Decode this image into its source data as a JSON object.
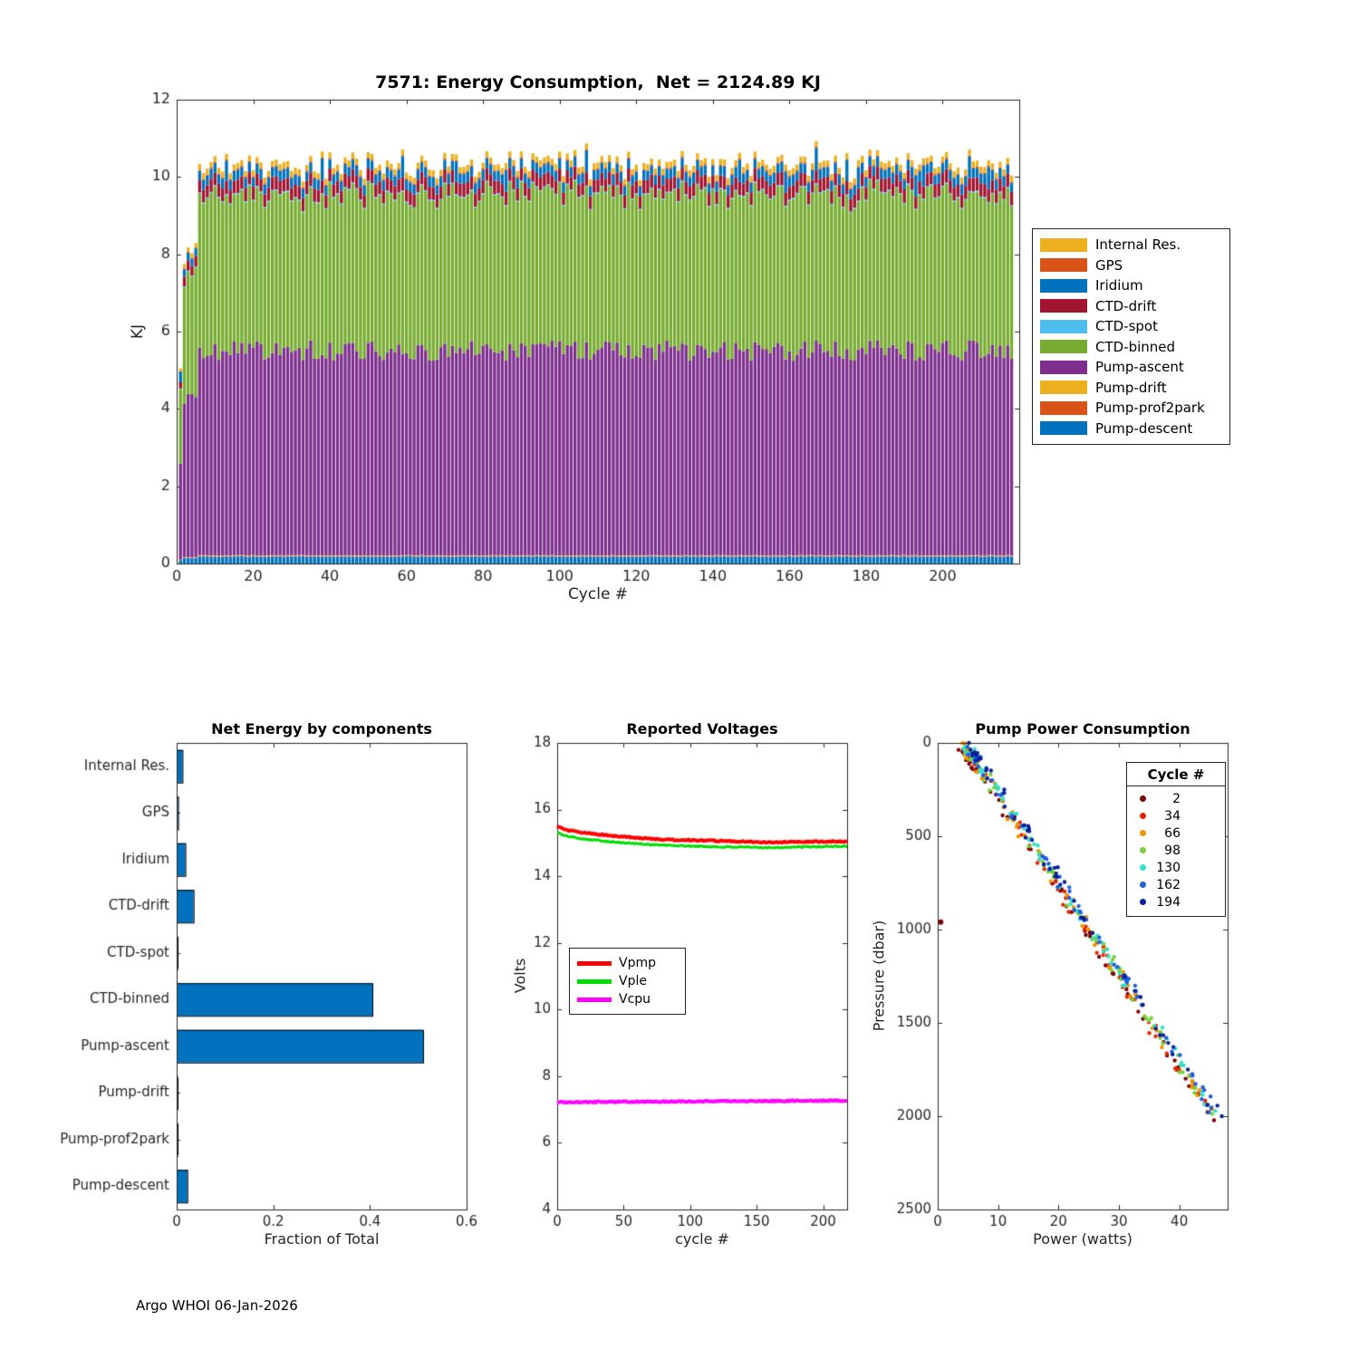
{
  "figure": {
    "footer": "Argo WHOI 06-Jan-2026"
  },
  "chart_data": [
    {
      "id": "energy-consumption",
      "type": "bar",
      "stacked": true,
      "title": "7571: Energy Consumption,  Net = 2124.89 KJ",
      "xlabel": "Cycle #",
      "ylabel": "KJ",
      "xlim": [
        0,
        220
      ],
      "ylim": [
        0,
        12
      ],
      "xticks": [
        0,
        20,
        40,
        60,
        80,
        100,
        120,
        140,
        160,
        180,
        200
      ],
      "yticks": [
        0,
        2,
        4,
        6,
        8,
        10,
        12
      ],
      "n_cycles": 218,
      "net_total_kj": 2124.89,
      "typical_cycle_total_kj": 10.3,
      "components_bottom_to_top": [
        {
          "name": "Pump-descent",
          "color": "#0072BD",
          "typical_kj": 0.18
        },
        {
          "name": "Pump-prof2park",
          "color": "#D95319",
          "typical_kj": 0.015
        },
        {
          "name": "Pump-drift",
          "color": "#EDB120",
          "typical_kj": 0.015
        },
        {
          "name": "Pump-ascent",
          "color": "#7E2F8E",
          "typical_kj": 5.3
        },
        {
          "name": "CTD-binned",
          "color": "#77AC30",
          "typical_kj": 4.0
        },
        {
          "name": "CTD-spot",
          "color": "#4DBEEE",
          "typical_kj": 0.03
        },
        {
          "name": "CTD-drift",
          "color": "#A2142F",
          "typical_kj": 0.33
        },
        {
          "name": "Iridium",
          "color": "#0072BD",
          "typical_kj": 0.25
        },
        {
          "name": "GPS",
          "color": "#D95319",
          "typical_kj": 0.03
        },
        {
          "name": "Internal Res.",
          "color": "#EDB120",
          "typical_kj": 0.15
        }
      ],
      "startup_scales": [
        0.49,
        0.78,
        0.79,
        0.78,
        0.8
      ],
      "jitter_fraction": 0.05,
      "legend_top_to_bottom": [
        "Internal Res.",
        "GPS",
        "Iridium",
        "CTD-drift",
        "CTD-spot",
        "CTD-binned",
        "Pump-ascent",
        "Pump-drift",
        "Pump-prof2park",
        "Pump-descent"
      ]
    },
    {
      "id": "net-energy-by-components",
      "type": "bar",
      "orientation": "horizontal",
      "title": "Net Energy by components",
      "xlabel": "Fraction of Total",
      "categories_top_to_bottom": [
        "Internal Res.",
        "GPS",
        "Iridium",
        "CTD-drift",
        "CTD-spot",
        "CTD-binned",
        "Pump-ascent",
        "Pump-drift",
        "Pump-prof2park",
        "Pump-descent"
      ],
      "values": [
        0.012,
        0.003,
        0.018,
        0.035,
        0.002,
        0.405,
        0.51,
        0.002,
        0.002,
        0.022
      ],
      "bar_color": "#0072BD",
      "xlim": [
        0,
        0.6
      ],
      "xticks": [
        0,
        0.2,
        0.4,
        0.6
      ]
    },
    {
      "id": "reported-voltages",
      "type": "line",
      "title": "Reported Voltages",
      "xlabel": "cycle #",
      "ylabel": "Volts",
      "xlim": [
        0,
        218
      ],
      "ylim": [
        4,
        18
      ],
      "xticks": [
        0,
        50,
        100,
        150,
        200
      ],
      "yticks": [
        4,
        6,
        8,
        10,
        12,
        14,
        16,
        18
      ],
      "series": [
        {
          "name": "Vpmp",
          "color": "#FF0000",
          "width": 4,
          "x": [
            0,
            5,
            20,
            50,
            80,
            120,
            160,
            218
          ],
          "y": [
            15.5,
            15.4,
            15.3,
            15.18,
            15.1,
            15.06,
            15.02,
            15.05
          ]
        },
        {
          "name": "Vple",
          "color": "#00DD00",
          "width": 3,
          "x": [
            0,
            5,
            20,
            50,
            80,
            120,
            160,
            218
          ],
          "y": [
            15.32,
            15.22,
            15.12,
            15.0,
            14.93,
            14.88,
            14.86,
            14.9
          ]
        },
        {
          "name": "Vcpu",
          "color": "#FF00FF",
          "width": 4,
          "x": [
            0,
            218
          ],
          "y": [
            7.22,
            7.27
          ]
        }
      ]
    },
    {
      "id": "pump-power-consumption",
      "type": "scatter",
      "title": "Pump Power Consumption",
      "xlabel": "Power (watts)",
      "ylabel": "Pressure (dbar)",
      "xlim": [
        0,
        48
      ],
      "ylim": [
        0,
        2500
      ],
      "y_reversed": true,
      "xticks": [
        0,
        10,
        20,
        30,
        40
      ],
      "yticks": [
        0,
        500,
        1000,
        1500,
        2000,
        2500
      ],
      "legend_title": "Cycle #",
      "series": [
        {
          "cycle": 2,
          "color": "#7F0000"
        },
        {
          "cycle": 34,
          "color": "#E62600"
        },
        {
          "cycle": 66,
          "color": "#EE9500"
        },
        {
          "cycle": 98,
          "color": "#77D13B"
        },
        {
          "cycle": 130,
          "color": "#33E0CC"
        },
        {
          "cycle": 162,
          "color": "#1F5FE0"
        },
        {
          "cycle": 194,
          "color": "#032099"
        }
      ],
      "trend": {
        "power_start": 4.5,
        "power_end": 46,
        "pressure_start": 10,
        "pressure_end": 2010
      },
      "points_per_series": 60,
      "outlier": {
        "power": 0.5,
        "pressure": 960
      }
    }
  ]
}
